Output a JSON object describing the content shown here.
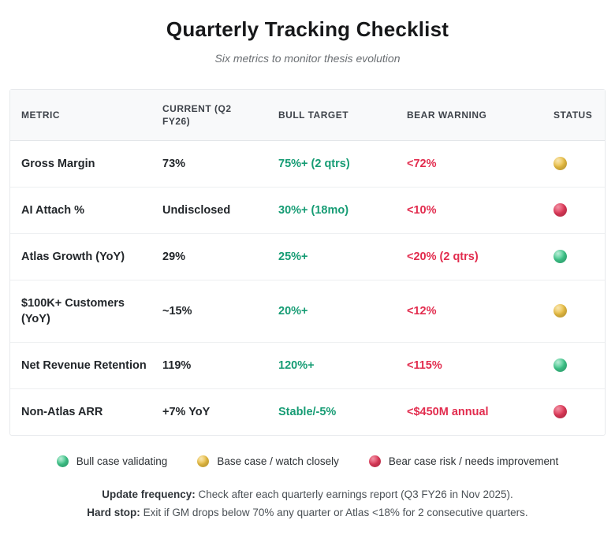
{
  "page": {
    "title": "Quarterly Tracking Checklist",
    "subtitle": "Six metrics to monitor thesis evolution"
  },
  "table": {
    "columns": [
      "METRIC",
      "CURRENT (Q2 FY26)",
      "BULL TARGET",
      "BEAR WARNING",
      "STATUS"
    ],
    "rows": [
      {
        "metric": "Gross Margin",
        "current": "73%",
        "bull": "75%+ (2 qtrs)",
        "bear": "<72%",
        "status": "yellow"
      },
      {
        "metric": "AI Attach %",
        "current": "Undisclosed",
        "bull": "30%+ (18mo)",
        "bear": "<10%",
        "status": "red"
      },
      {
        "metric": "Atlas Growth (YoY)",
        "current": "29%",
        "bull": "25%+",
        "bear": "<20% (2 qtrs)",
        "status": "green"
      },
      {
        "metric": "$100K+ Customers (YoY)",
        "current": "~15%",
        "bull": "20%+",
        "bear": "<12%",
        "status": "yellow"
      },
      {
        "metric": "Net Revenue Retention",
        "current": "119%",
        "bull": "120%+",
        "bear": "<115%",
        "status": "green"
      },
      {
        "metric": "Non-Atlas ARR",
        "current": "+7% YoY",
        "bull": "Stable/-5%",
        "bear": "<$450M annual",
        "status": "red"
      }
    ]
  },
  "legend": [
    {
      "color": "green",
      "label": "Bull case validating"
    },
    {
      "color": "yellow",
      "label": "Base case / watch closely"
    },
    {
      "color": "red",
      "label": "Bear case risk / needs improvement"
    }
  ],
  "footer": {
    "line1_bold": "Update frequency:",
    "line1_text": "Check after each quarterly earnings report (Q3 FY26 in Nov 2025).",
    "line2_bold": "Hard stop:",
    "line2_text": "Exit if GM drops below 70% any quarter or Atlas <18% for 2 consecutive quarters."
  },
  "colors": {
    "bull_text": "#169c74",
    "bear_text": "#e22c4e",
    "status_green": "#3fc98c",
    "status_yellow": "#ecc043",
    "status_red": "#e23a5a"
  }
}
